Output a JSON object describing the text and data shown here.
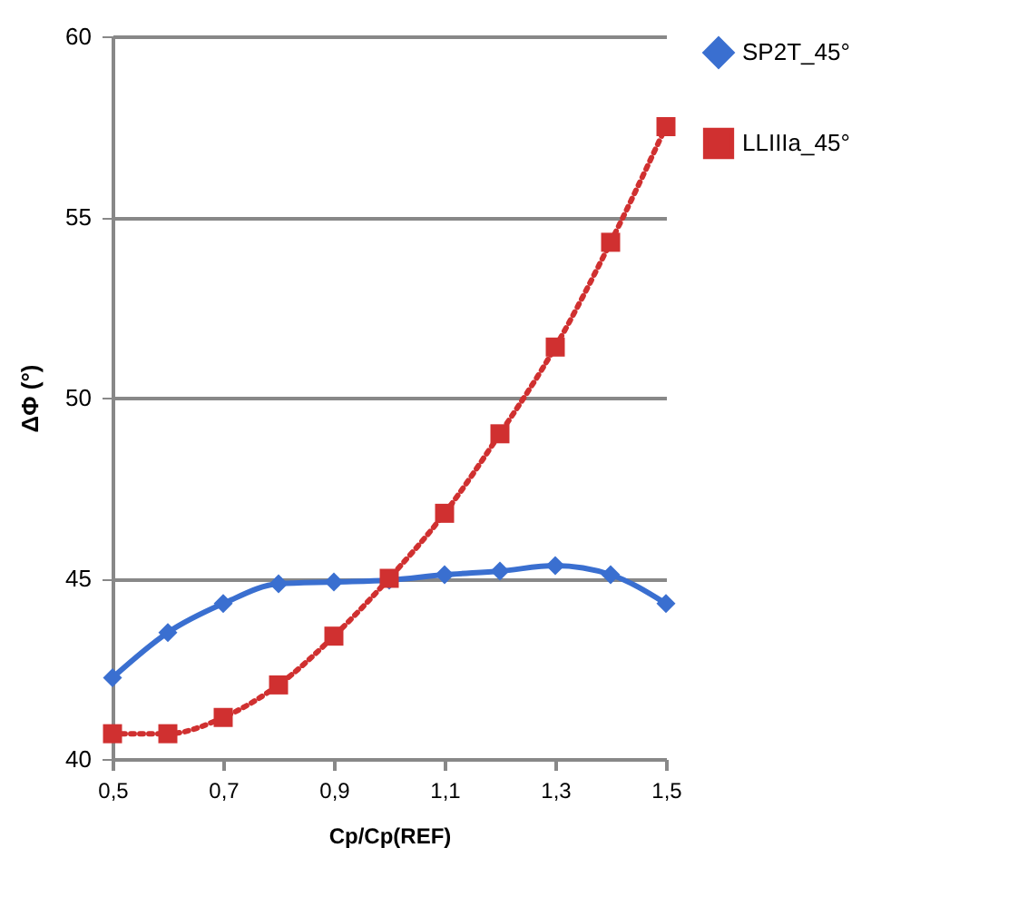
{
  "chart_data": {
    "type": "line",
    "xlabel": "Cp/Cp(REF)",
    "ylabel": "ΔΦ (°)",
    "x": [
      0.5,
      0.6,
      0.7,
      0.8,
      0.9,
      1.0,
      1.1,
      1.2,
      1.3,
      1.4,
      1.5
    ],
    "series": [
      {
        "name": "SP2T_45°",
        "color": "#3a6fd0",
        "marker": "diamond",
        "line_style": "solid",
        "values": [
          42.25,
          43.5,
          44.3,
          44.85,
          44.9,
          44.95,
          45.1,
          45.2,
          45.35,
          45.1,
          44.3
        ]
      },
      {
        "name": "LLIIIa_45°",
        "color": "#d03030",
        "marker": "square",
        "line_style": "dotted",
        "values": [
          40.7,
          40.7,
          41.15,
          42.05,
          43.4,
          45.0,
          46.8,
          49.0,
          51.4,
          54.3,
          57.5
        ]
      }
    ],
    "xlim": [
      0.5,
      1.5
    ],
    "xticks": [
      {
        "value": 0.5,
        "label": "0,5"
      },
      {
        "value": 0.7,
        "label": "0,7"
      },
      {
        "value": 0.9,
        "label": "0,9"
      },
      {
        "value": 1.1,
        "label": "1,1"
      },
      {
        "value": 1.3,
        "label": "1,3"
      },
      {
        "value": 1.5,
        "label": "1,5"
      }
    ],
    "ylim": [
      40,
      60
    ],
    "yticks": [
      40,
      45,
      50,
      55,
      60
    ],
    "grid": "y",
    "legend": "right"
  }
}
